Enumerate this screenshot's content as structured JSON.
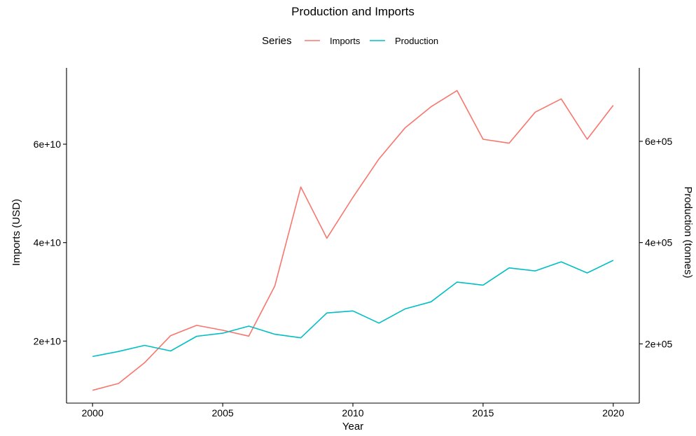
{
  "chart_data": {
    "type": "line",
    "title": "Production and Imports",
    "xlabel": "Year",
    "ylabel_left": "Imports (USD)",
    "ylabel_right": "Production (tonnes)",
    "legend": {
      "title": "Series",
      "placement": "top"
    },
    "grid": false,
    "x": [
      2000,
      2001,
      2002,
      2003,
      2004,
      2005,
      2006,
      2007,
      2008,
      2009,
      2010,
      2011,
      2012,
      2013,
      2014,
      2015,
      2016,
      2017,
      2018,
      2019,
      2020
    ],
    "xlim": [
      1999,
      2021
    ],
    "x_ticks": [
      2000,
      2005,
      2010,
      2015,
      2020
    ],
    "x_tick_labels": [
      "2000",
      "2005",
      "2010",
      "2015",
      "2020"
    ],
    "y_left": {
      "lim": [
        7400000000.0,
        75500000000.0
      ],
      "ticks": [
        20000000000.0,
        40000000000.0,
        60000000000.0
      ],
      "tick_labels": [
        "2e+10",
        "4e+10",
        "6e+10"
      ]
    },
    "y_right": {
      "lim": [
        83000,
        745000
      ],
      "ticks": [
        200000,
        400000,
        600000
      ],
      "tick_labels": [
        "2e+05",
        "4e+05",
        "6e+05"
      ]
    },
    "series": [
      {
        "name": "Imports",
        "axis": "left",
        "color": "#F8766D",
        "values": [
          10000000000.0,
          11400000000.0,
          15600000000.0,
          21100000000.0,
          23200000000.0,
          22200000000.0,
          21000000000.0,
          31200000000.0,
          51300000000.0,
          40900000000.0,
          49200000000.0,
          57000000000.0,
          63300000000.0,
          67600000000.0,
          70900000000.0,
          61000000000.0,
          60200000000.0,
          66500000000.0,
          69200000000.0,
          61000000000.0,
          67900000000.0
        ]
      },
      {
        "name": "Production",
        "axis": "right",
        "color": "#00BFC4",
        "values": [
          175000,
          185000,
          197000,
          186000,
          215000,
          221000,
          235000,
          219000,
          212000,
          261000,
          265000,
          241000,
          269000,
          283000,
          322000,
          316000,
          350000,
          344000,
          362000,
          340000,
          365000
        ]
      }
    ]
  }
}
